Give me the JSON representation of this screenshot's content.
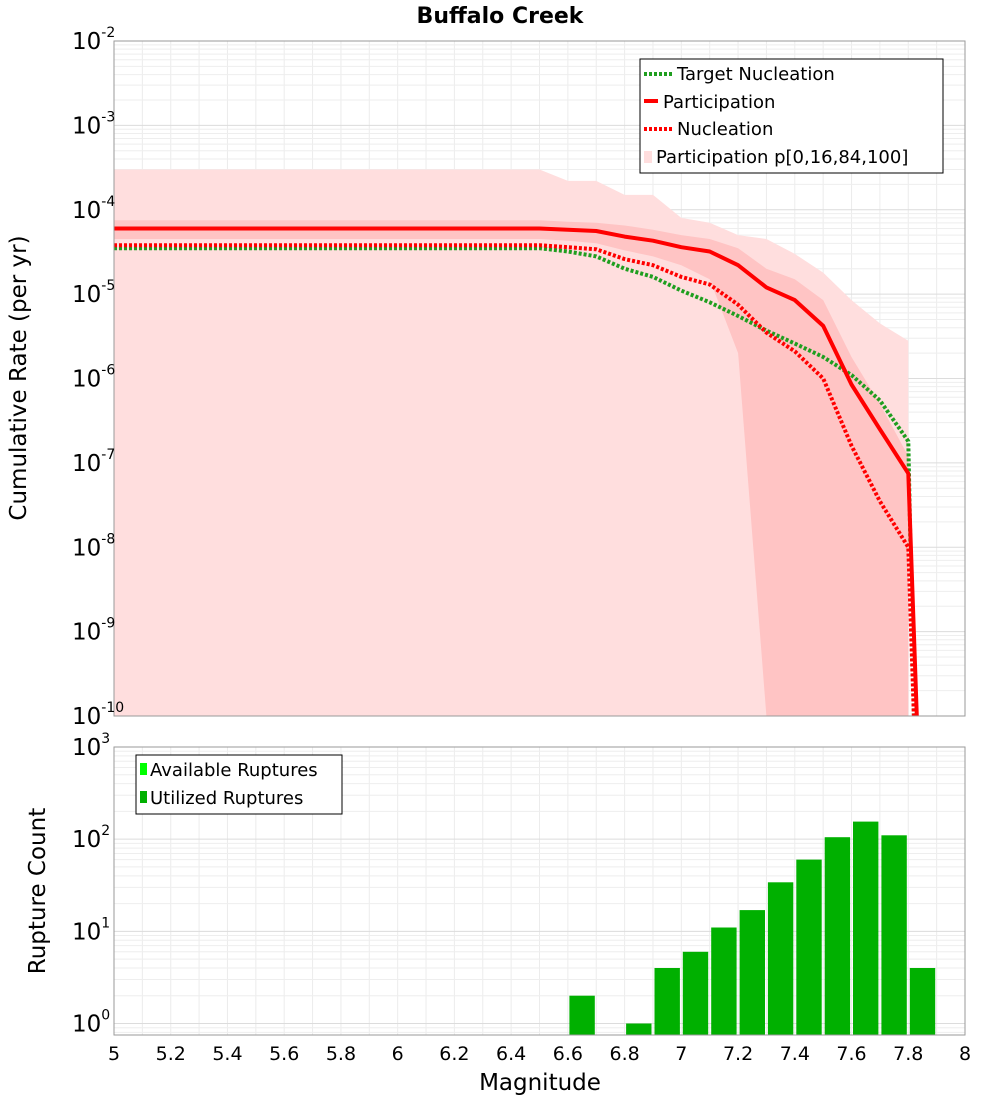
{
  "chart_data": [
    {
      "type": "line",
      "title": "Buffalo Creek",
      "xlabel": "",
      "ylabel": "Cumulative Rate (per yr)",
      "xlim": [
        5,
        8
      ],
      "ylim": [
        1e-10,
        0.01
      ],
      "yscale": "log",
      "grid": true,
      "legend_position": "top-right",
      "series": [
        {
          "name": "Target Nucleation",
          "style": "dotted",
          "color": "#1f9e1f",
          "x": [
            5.0,
            6.5,
            6.6,
            6.7,
            6.8,
            6.9,
            7.0,
            7.1,
            7.2,
            7.3,
            7.4,
            7.5,
            7.6,
            7.7,
            7.8,
            7.82
          ],
          "y": [
            3.5e-05,
            3.5e-05,
            3.2e-05,
            2.8e-05,
            2e-05,
            1.6e-05,
            1.1e-05,
            8e-06,
            5.5e-06,
            3.7e-06,
            2.6e-06,
            1.8e-06,
            1.1e-06,
            5.5e-07,
            1.8e-07,
            1e-10
          ]
        },
        {
          "name": "Participation",
          "style": "solid",
          "color": "#ff0000",
          "x": [
            5.0,
            6.5,
            6.6,
            6.7,
            6.8,
            6.9,
            7.0,
            7.1,
            7.2,
            7.3,
            7.4,
            7.5,
            7.6,
            7.7,
            7.8,
            7.83
          ],
          "y": [
            6e-05,
            6e-05,
            5.8e-05,
            5.6e-05,
            4.8e-05,
            4.3e-05,
            3.6e-05,
            3.2e-05,
            2.2e-05,
            1.2e-05,
            8.5e-06,
            4.2e-06,
            8.5e-07,
            2.5e-07,
            7.5e-08,
            1e-10
          ]
        },
        {
          "name": "Nucleation",
          "style": "dotted",
          "color": "#ff0000",
          "x": [
            5.0,
            6.5,
            6.6,
            6.7,
            6.8,
            6.9,
            7.0,
            7.1,
            7.2,
            7.3,
            7.4,
            7.5,
            7.6,
            7.7,
            7.8,
            7.82
          ],
          "y": [
            3.8e-05,
            3.8e-05,
            3.6e-05,
            3.4e-05,
            2.6e-05,
            2.2e-05,
            1.6e-05,
            1.3e-05,
            7.5e-06,
            3.5e-06,
            2.1e-06,
            1e-06,
            1.6e-07,
            3.5e-08,
            1e-08,
            1e-10
          ]
        }
      ],
      "bands": [
        {
          "name": "Participation p[0,16,84,100]",
          "color": "#ffdede",
          "x": [
            5.0,
            6.5,
            6.6,
            6.7,
            6.8,
            6.9,
            7.0,
            7.1,
            7.2,
            7.3,
            7.4,
            7.5,
            7.6,
            7.7,
            7.8
          ],
          "upper": [
            0.0003,
            0.0003,
            0.00022,
            0.00022,
            0.00015,
            0.00015,
            8e-05,
            7e-05,
            5e-05,
            4.5e-05,
            3e-05,
            1.8e-05,
            8.5e-06,
            4.5e-06,
            2.8e-06
          ],
          "lower": [
            1e-10,
            1e-10,
            1e-10,
            1e-10,
            1e-10,
            1e-10,
            1e-10,
            1e-10,
            1e-10,
            1e-10,
            1e-10,
            1e-10,
            1e-10,
            1e-10,
            1e-10
          ]
        },
        {
          "name": "",
          "color": "#ffc4c4",
          "x": [
            5.0,
            6.5,
            6.6,
            6.7,
            6.8,
            6.9,
            7.0,
            7.1,
            7.2,
            7.3,
            7.4,
            7.5,
            7.6,
            7.7,
            7.8
          ],
          "upper": [
            7.5e-05,
            7.5e-05,
            7.2e-05,
            7e-05,
            6.5e-05,
            5.8e-05,
            5e-05,
            4.5e-05,
            3.5e-05,
            2e-05,
            1.5e-05,
            8.5e-06,
            1.8e-06,
            5e-07,
            1.2e-07
          ],
          "lower": [
            4.5e-05,
            4.5e-05,
            4.3e-05,
            4e-05,
            3.3e-05,
            2.8e-05,
            2.2e-05,
            1.5e-05,
            2e-06,
            1e-10,
            1e-10,
            1e-10,
            1e-10,
            1e-10,
            1e-10
          ]
        }
      ]
    },
    {
      "type": "bar",
      "xlabel": "Magnitude",
      "ylabel": "Rupture Count",
      "xlim": [
        5,
        8
      ],
      "ylim": [
        0.75,
        1000
      ],
      "yscale": "log",
      "grid": true,
      "legend_position": "top-left",
      "bin_width": 0.1,
      "series": [
        {
          "name": "Available Ruptures",
          "color": "#00ff00",
          "x": [],
          "values": []
        },
        {
          "name": "Utilized Ruptures",
          "color": "#00b000",
          "x": [
            6.65,
            6.85,
            6.95,
            7.05,
            7.15,
            7.25,
            7.35,
            7.45,
            7.55,
            7.65,
            7.75,
            7.85
          ],
          "values": [
            2,
            1,
            4,
            6,
            11,
            17,
            34,
            60,
            105,
            155,
            110,
            4
          ]
        }
      ]
    }
  ],
  "x_ticks": [
    "5",
    "5.2",
    "5.4",
    "5.6",
    "5.8",
    "6",
    "6.2",
    "6.4",
    "6.6",
    "6.8",
    "7",
    "7.2",
    "7.4",
    "7.6",
    "7.8",
    "8"
  ],
  "top_y_ticks": [
    {
      "base": "10",
      "exp": "-2"
    },
    {
      "base": "10",
      "exp": "-3"
    },
    {
      "base": "10",
      "exp": "-4"
    },
    {
      "base": "10",
      "exp": "-5"
    },
    {
      "base": "10",
      "exp": "-6"
    },
    {
      "base": "10",
      "exp": "-7"
    },
    {
      "base": "10",
      "exp": "-8"
    },
    {
      "base": "10",
      "exp": "-9"
    },
    {
      "base": "10",
      "exp": "-10"
    }
  ],
  "bottom_y_ticks": [
    {
      "base": "10",
      "exp": "3"
    },
    {
      "base": "10",
      "exp": "2"
    },
    {
      "base": "10",
      "exp": "1"
    },
    {
      "base": "10",
      "exp": "0"
    }
  ]
}
